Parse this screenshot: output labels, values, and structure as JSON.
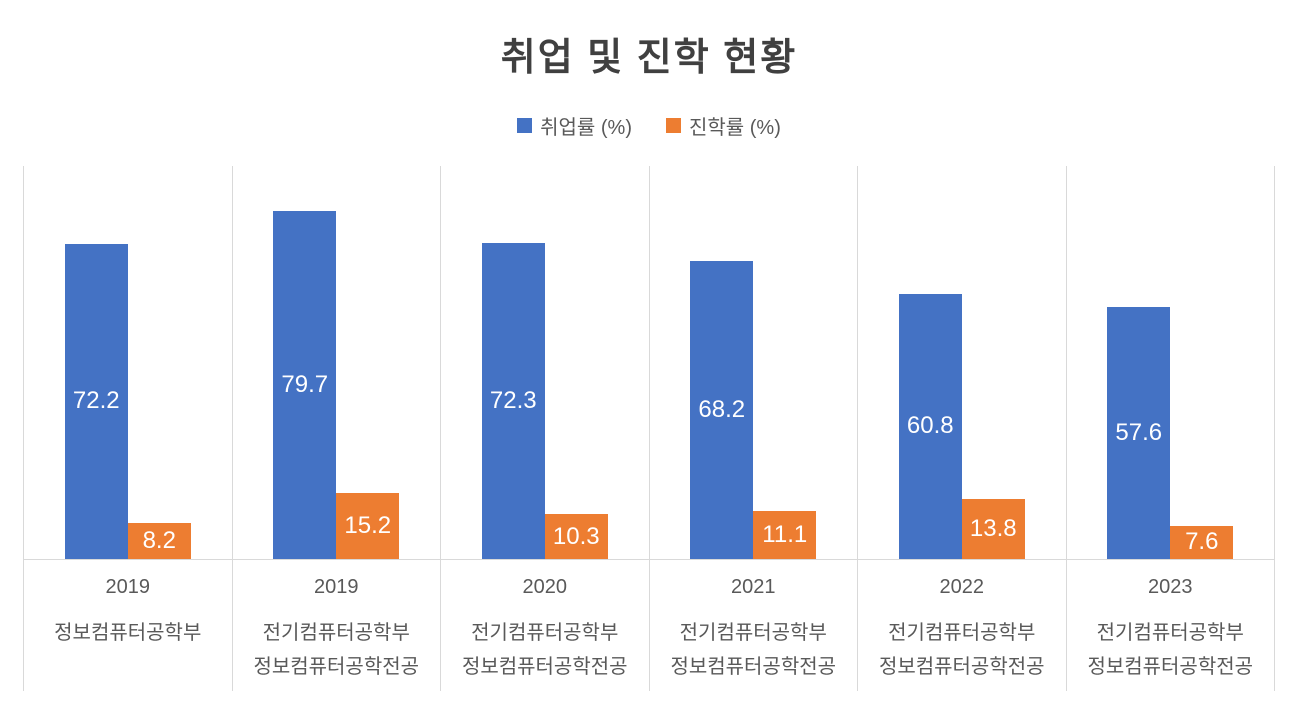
{
  "chart_data": {
    "type": "bar",
    "title": "취업 및 진학 현황",
    "legend_position": "top-center",
    "grid": "vertical-category-separators",
    "ylim": [
      0,
      90
    ],
    "yaxis_visible": false,
    "colors": {
      "employment_bar": "#4472C4",
      "advancement_bar": "#ED7D31",
      "gridline": "#D9D9D9",
      "title_text": "#404040",
      "category_text": "#595959",
      "bar_label_text": "#FFFFFF"
    },
    "legend": [
      {
        "name": "취업률 (%)",
        "color": "#4472C4"
      },
      {
        "name": "진학률 (%)",
        "color": "#ED7D31"
      }
    ],
    "categories": [
      "2019 정보컴퓨터공학부",
      "2019 전기컴퓨터공학부 정보컴퓨터공학전공",
      "2020 전기컴퓨터공학부 정보컴퓨터공학전공",
      "2021 전기컴퓨터공학부 정보컴퓨터공학전공",
      "2022 전기컴퓨터공학부 정보컴퓨터공학전공",
      "2023 전기컴퓨터공학부 정보컴퓨터공학전공"
    ],
    "series": [
      {
        "name": "취업률 (%)",
        "values": [
          72.2,
          79.7,
          72.3,
          68.2,
          60.8,
          57.6
        ]
      },
      {
        "name": "진학률 (%)",
        "values": [
          8.2,
          15.2,
          10.3,
          11.1,
          13.8,
          7.6
        ]
      }
    ],
    "groups": [
      {
        "year": "2019",
        "dept_lines": [
          "정보컴퓨터공학부"
        ],
        "employment": "72.2",
        "advancement": "8.2"
      },
      {
        "year": "2019",
        "dept_lines": [
          "전기컴퓨터공학부",
          "정보컴퓨터공학전공"
        ],
        "employment": "79.7",
        "advancement": "15.2"
      },
      {
        "year": "2020",
        "dept_lines": [
          "전기컴퓨터공학부",
          "정보컴퓨터공학전공"
        ],
        "employment": "72.3",
        "advancement": "10.3"
      },
      {
        "year": "2021",
        "dept_lines": [
          "전기컴퓨터공학부",
          "정보컴퓨터공학전공"
        ],
        "employment": "68.2",
        "advancement": "11.1"
      },
      {
        "year": "2022",
        "dept_lines": [
          "전기컴퓨터공학부",
          "정보컴퓨터공학전공"
        ],
        "employment": "60.8",
        "advancement": "13.8"
      },
      {
        "year": "2023",
        "dept_lines": [
          "전기컴퓨터공학부",
          "정보컴퓨터공학전공"
        ],
        "employment": "57.6",
        "advancement": "7.6"
      }
    ]
  }
}
